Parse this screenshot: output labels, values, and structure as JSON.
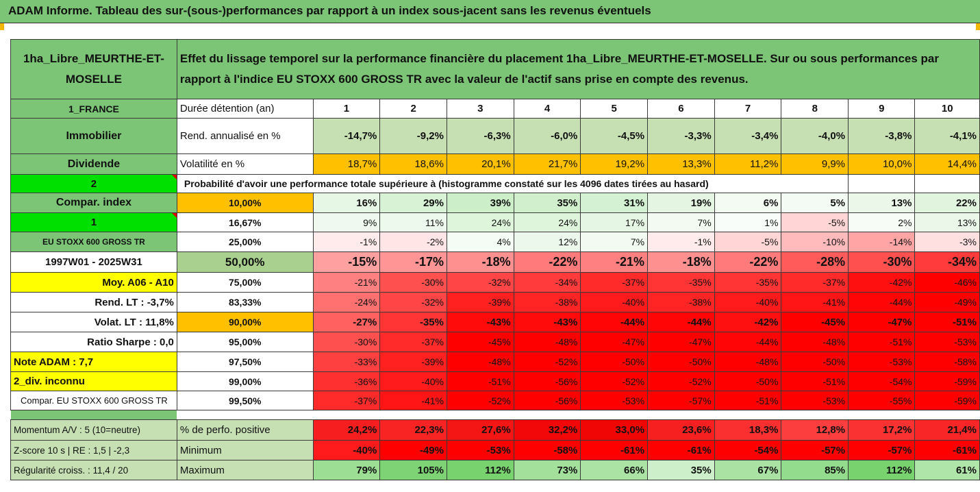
{
  "title": "ADAM Informe. Tableau des sur-(sous-)performances par rapport à un index sous-jacent sans les revenus éventuels",
  "header": {
    "fund_name": "1ha_Libre_MEURTHE-ET-MOSELLE",
    "description": "Effet du lissage temporel sur la performance financière du placement 1ha_Libre_MEURTHE-ET-MOSELLE. Sur ou sous performances par rapport à l'indice EU STOXX 600 GROSS TR avec la valeur de l'actif sans prise en compte des revenus."
  },
  "sidebar": [
    "1_FRANCE",
    "Immobilier",
    "Dividende",
    "2",
    "Compar. index",
    "1",
    "EU STOXX 600 GROSS TR",
    "1997W01 - 2025W31",
    "Moy. A06 - A10",
    "Rend. LT :   -3,7%",
    "Volat. LT :   11,8%",
    "Ratio Sharpe :   0,0",
    "Note ADAM : 7,7",
    "2_div. inconnu",
    "Compar. EU STOXX 600 GROSS TR"
  ],
  "years_label": "Durée détention (an)",
  "years": [
    "1",
    "2",
    "3",
    "4",
    "5",
    "6",
    "7",
    "8",
    "9",
    "10"
  ],
  "rend": {
    "label": "Rend. annualisé en %",
    "values": [
      "-14,7%",
      "-9,2%",
      "-6,3%",
      "-6,0%",
      "-4,5%",
      "-3,3%",
      "-3,4%",
      "-4,0%",
      "-3,8%",
      "-4,1%"
    ]
  },
  "vol": {
    "label": "Volatilité en %",
    "values": [
      "18,7%",
      "18,6%",
      "20,1%",
      "21,7%",
      "19,2%",
      "13,3%",
      "11,2%",
      "9,9%",
      "10,0%",
      "14,4%"
    ]
  },
  "prob_label": "Probabilité d'avoir une performance totale supérieure à (histogramme constaté sur les 4096 dates tirées au hasard)",
  "quantiles": [
    {
      "p": "10,00%",
      "values": [
        "16%",
        "29%",
        "39%",
        "35%",
        "31%",
        "19%",
        "6%",
        "5%",
        "13%",
        "22%"
      ]
    },
    {
      "p": "16,67%",
      "values": [
        "9%",
        "11%",
        "24%",
        "24%",
        "17%",
        "7%",
        "1%",
        "-5%",
        "2%",
        "13%"
      ]
    },
    {
      "p": "25,00%",
      "values": [
        "-1%",
        "-2%",
        "4%",
        "12%",
        "7%",
        "-1%",
        "-5%",
        "-10%",
        "-14%",
        "-3%"
      ]
    },
    {
      "p": "50,00%",
      "values": [
        "-15%",
        "-17%",
        "-18%",
        "-22%",
        "-21%",
        "-18%",
        "-22%",
        "-28%",
        "-30%",
        "-34%"
      ]
    },
    {
      "p": "75,00%",
      "values": [
        "-21%",
        "-30%",
        "-32%",
        "-34%",
        "-37%",
        "-35%",
        "-35%",
        "-37%",
        "-42%",
        "-46%"
      ]
    },
    {
      "p": "83,33%",
      "values": [
        "-24%",
        "-32%",
        "-39%",
        "-38%",
        "-40%",
        "-38%",
        "-40%",
        "-41%",
        "-44%",
        "-49%"
      ]
    },
    {
      "p": "90,00%",
      "values": [
        "-27%",
        "-35%",
        "-43%",
        "-43%",
        "-44%",
        "-44%",
        "-42%",
        "-45%",
        "-47%",
        "-51%"
      ]
    },
    {
      "p": "95,00%",
      "values": [
        "-30%",
        "-37%",
        "-45%",
        "-48%",
        "-47%",
        "-47%",
        "-44%",
        "-48%",
        "-51%",
        "-53%"
      ]
    },
    {
      "p": "97,50%",
      "values": [
        "-33%",
        "-39%",
        "-48%",
        "-52%",
        "-50%",
        "-50%",
        "-48%",
        "-50%",
        "-53%",
        "-58%"
      ]
    },
    {
      "p": "99,00%",
      "values": [
        "-36%",
        "-40%",
        "-51%",
        "-56%",
        "-52%",
        "-52%",
        "-50%",
        "-51%",
        "-54%",
        "-59%"
      ]
    },
    {
      "p": "99,50%",
      "values": [
        "-37%",
        "-41%",
        "-52%",
        "-56%",
        "-53%",
        "-57%",
        "-51%",
        "-53%",
        "-55%",
        "-59%"
      ]
    }
  ],
  "bottom": [
    {
      "side": "Momentum A/V : 5 (10=neutre)",
      "label": "% de perfo. positive",
      "values": [
        "24,2%",
        "22,3%",
        "27,6%",
        "32,2%",
        "33,0%",
        "23,6%",
        "18,3%",
        "12,8%",
        "17,2%",
        "21,4%"
      ]
    },
    {
      "side": "Z-score 10 s  | RE : 1,5 | -2,3",
      "label": "Minimum",
      "values": [
        "-40%",
        "-49%",
        "-53%",
        "-58%",
        "-61%",
        "-61%",
        "-54%",
        "-57%",
        "-57%",
        "-61%"
      ]
    },
    {
      "side": "Régularité croiss. : 11,4 / 20",
      "label": "Maximum",
      "values": [
        "79%",
        "105%",
        "112%",
        "73%",
        "66%",
        "35%",
        "67%",
        "85%",
        "112%",
        "61%"
      ]
    }
  ],
  "colors": {
    "header_green": "#7cc576",
    "bright_green": "#00e000",
    "yellow": "#ffff00",
    "orange": "#ffc000",
    "red": "#ff0000"
  }
}
